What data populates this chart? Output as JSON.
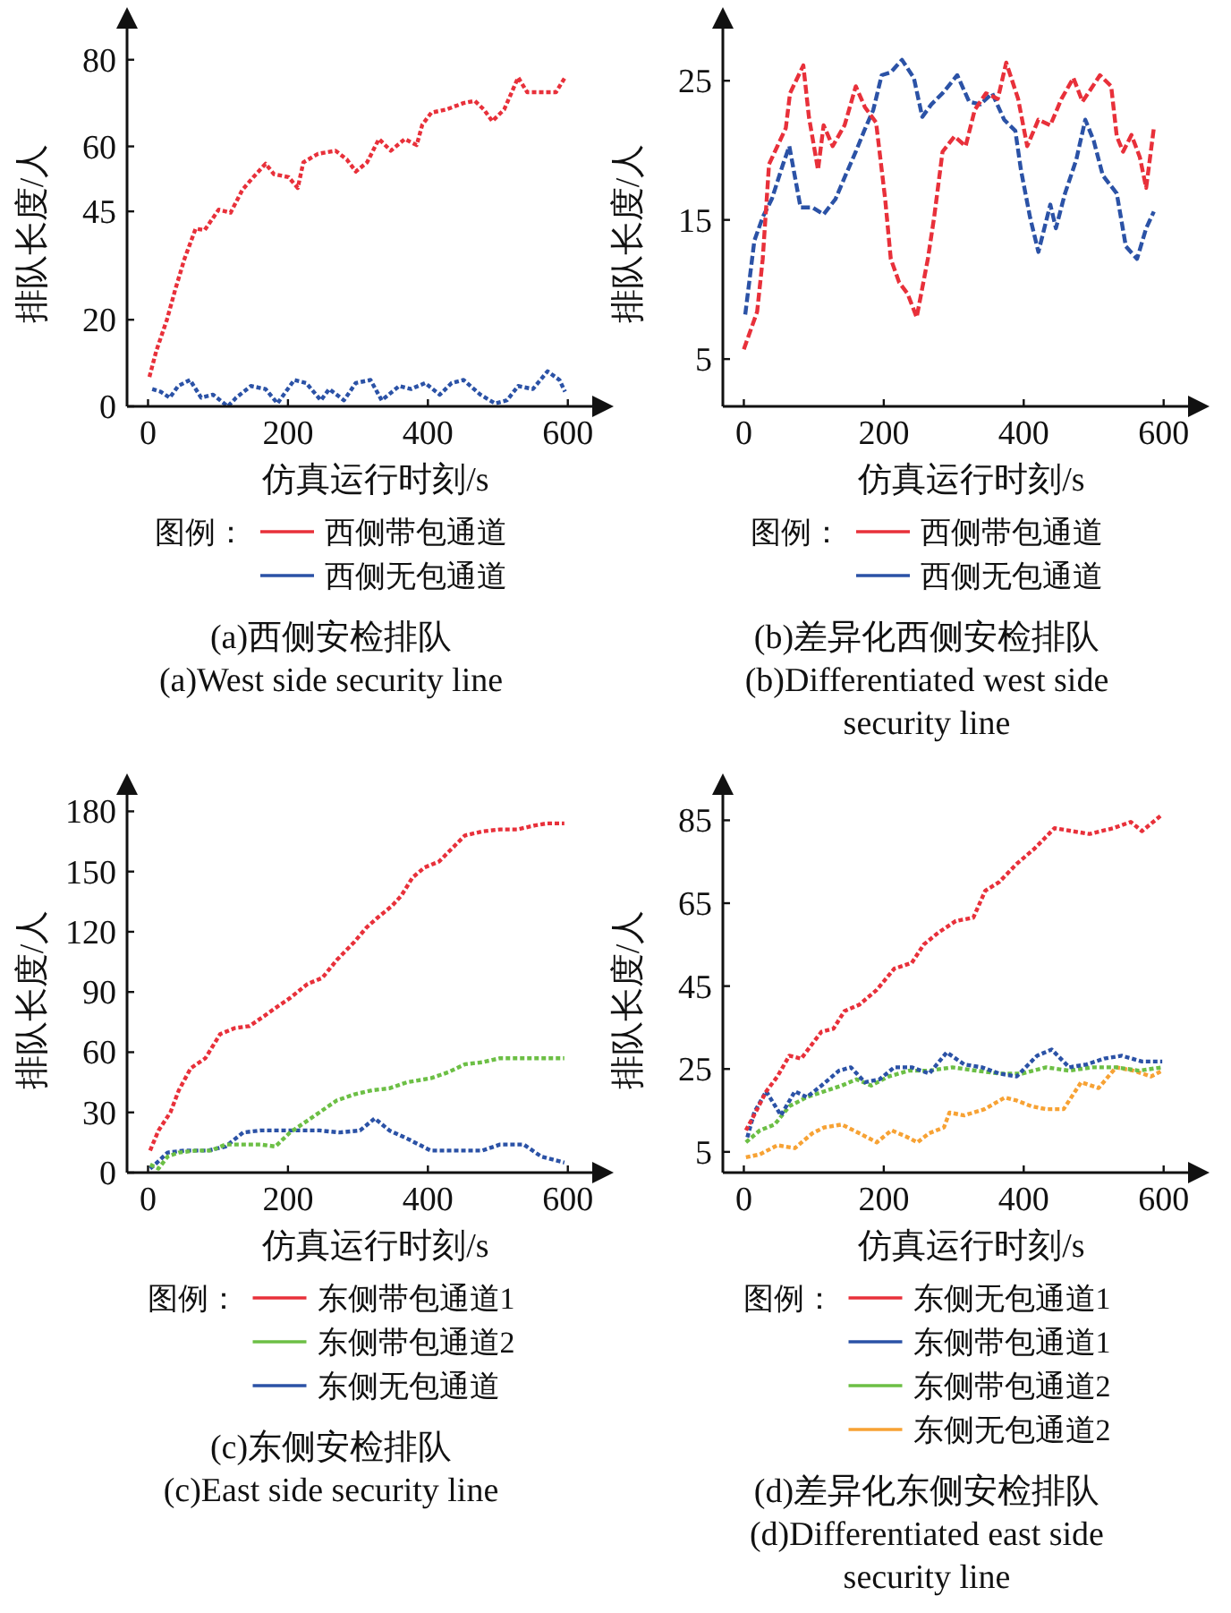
{
  "chart_data": [
    {
      "type": "line",
      "xlabel": "仿真运行时刻/s",
      "ylabel": "排队长度/人",
      "legend_title": "图例：",
      "legend": "bottom",
      "grid": false,
      "marker": "none",
      "line_style": "dotted",
      "xlim": [
        -30,
        640
      ],
      "xticks": [
        0,
        200,
        400,
        600
      ],
      "ylim": [
        0,
        88
      ],
      "yticks": [
        0,
        20,
        45,
        60,
        80
      ],
      "annotations": [
        "(a)西侧安检排队",
        "(a)West side security line"
      ],
      "series": [
        {
          "name": "西侧带包通道",
          "color": "#e8303a",
          "x": [
            2,
            12,
            27,
            39,
            52,
            68,
            81,
            101,
            118,
            135,
            151,
            168,
            180,
            201,
            214,
            222,
            243,
            268,
            284,
            297,
            313,
            330,
            347,
            367,
            384,
            392,
            405,
            426,
            451,
            467,
            480,
            492,
            509,
            529,
            542,
            567,
            583,
            596
          ],
          "values": [
            6.8,
            12.9,
            20,
            27,
            34,
            41,
            40.7,
            45.4,
            44.7,
            50,
            53,
            56,
            53.6,
            52.9,
            50.4,
            56.3,
            58.3,
            59,
            57,
            54.2,
            56.3,
            61.7,
            59,
            61.7,
            60.3,
            65,
            67.8,
            68.5,
            70,
            70.5,
            68.5,
            65.8,
            68.5,
            75.9,
            72.5,
            72.5,
            72.5,
            75.9
          ]
        },
        {
          "name": "西侧无包通道",
          "color": "#2b52a6",
          "x": [
            6,
            18,
            31,
            43,
            60,
            76,
            93,
            114,
            126,
            147,
            168,
            185,
            209,
            226,
            247,
            259,
            280,
            297,
            318,
            334,
            359,
            376,
            396,
            417,
            434,
            451,
            475,
            496,
            513,
            529,
            550,
            571,
            588,
            596
          ],
          "values": [
            4,
            3.4,
            2,
            4.7,
            6.1,
            2,
            2.7,
            0,
            2,
            4.7,
            4,
            0.7,
            6.1,
            5.4,
            1.4,
            4,
            1.4,
            5.4,
            6.1,
            1.4,
            4.7,
            4,
            5.4,
            2.7,
            5.4,
            6.1,
            2.7,
            0.7,
            1.4,
            4.7,
            4,
            8.1,
            6.1,
            3.4
          ]
        }
      ]
    },
    {
      "type": "line",
      "xlabel": "仿真运行时刻/s",
      "ylabel": "排队长度/人",
      "legend_title": "图例：",
      "legend": "bottom",
      "grid": false,
      "marker": "none",
      "line_style": "dashed",
      "xlim": [
        -30,
        640
      ],
      "xticks": [
        0,
        200,
        400,
        600
      ],
      "ylim": [
        1.6,
        29
      ],
      "yticks": [
        5,
        15,
        25
      ],
      "annotations": [
        "(b)差异化西侧安检排队",
        "(b)Differentiated west side security line"
      ],
      "series": [
        {
          "name": "西侧带包通道",
          "color": "#e8303a",
          "x": [
            0,
            19,
            27,
            36,
            48,
            60,
            66,
            85,
            93,
            106,
            114,
            127,
            144,
            160,
            173,
            189,
            202,
            210,
            222,
            234,
            247,
            255,
            263,
            272,
            284,
            301,
            317,
            330,
            346,
            363,
            375,
            392,
            405,
            421,
            438,
            454,
            471,
            484,
            496,
            509,
            525,
            533,
            542,
            554,
            566,
            575,
            586
          ],
          "values": [
            5.7,
            8.4,
            12.2,
            19,
            20.3,
            21.6,
            24.1,
            26.1,
            22.4,
            18.6,
            21.8,
            20.3,
            21.8,
            24.6,
            23.1,
            22,
            16.5,
            12.2,
            10.5,
            9.7,
            8,
            10.1,
            12.2,
            15.2,
            19.9,
            21,
            20.3,
            22.9,
            24.1,
            23.7,
            26.3,
            23.7,
            20.3,
            22.2,
            21.8,
            23.7,
            25.2,
            23.5,
            24.4,
            25.4,
            24.6,
            21,
            19.9,
            21.1,
            19.5,
            17.3,
            21.6
          ]
        },
        {
          "name": "西侧无包通道",
          "color": "#2b52a6",
          "x": [
            2,
            15,
            27,
            40,
            56,
            65,
            81,
            98,
            114,
            131,
            147,
            160,
            172,
            185,
            197,
            210,
            226,
            243,
            255,
            268,
            284,
            305,
            322,
            338,
            355,
            372,
            388,
            396,
            409,
            421,
            438,
            446,
            459,
            475,
            488,
            500,
            513,
            533,
            546,
            562,
            575,
            586
          ],
          "values": [
            8.2,
            13.5,
            15.2,
            16.5,
            19,
            20.3,
            15.9,
            15.9,
            15.4,
            16.5,
            18.4,
            19.9,
            21.4,
            22.9,
            25.4,
            25.6,
            26.5,
            25.2,
            22.4,
            23.3,
            24.1,
            25.4,
            23.5,
            23.3,
            24.1,
            22.2,
            21.4,
            18.6,
            15.2,
            12.7,
            16.1,
            14.4,
            16.9,
            19.3,
            22.2,
            20.7,
            18.2,
            16.9,
            13.1,
            12.2,
            14.4,
            15.6
          ]
        }
      ]
    },
    {
      "type": "line",
      "xlabel": "仿真运行时刻/s",
      "ylabel": "排队长度/人",
      "legend_title": "图例：",
      "legend": "bottom",
      "grid": false,
      "marker": "none",
      "line_style": "dotted",
      "xlim": [
        -30,
        640
      ],
      "xticks": [
        0,
        200,
        400,
        600
      ],
      "ylim": [
        0,
        190
      ],
      "yticks": [
        0,
        30,
        60,
        90,
        120,
        150,
        180
      ],
      "annotations": [
        "(c)东侧安检排队",
        "(c)East side security line"
      ],
      "series": [
        {
          "name": "东侧带包通道1",
          "color": "#e8303a",
          "x": [
            3,
            15,
            32,
            44,
            61,
            82,
            103,
            124,
            145,
            166,
            182,
            203,
            228,
            249,
            270,
            295,
            312,
            328,
            349,
            362,
            378,
            395,
            416,
            433,
            453,
            478,
            503,
            528,
            553,
            570,
            595
          ],
          "values": [
            11,
            21,
            30,
            41,
            52,
            57,
            69,
            72,
            73,
            78,
            82,
            87,
            94,
            97,
            106,
            115,
            122,
            127,
            133,
            138,
            147,
            152,
            155,
            161,
            168,
            170,
            171,
            171,
            173,
            174,
            174
          ]
        },
        {
          "name": "东侧带包通道2",
          "color": "#6cbf45",
          "x": [
            3,
            15,
            28,
            44,
            69,
            90,
            111,
            136,
            161,
            182,
            203,
            220,
            245,
            270,
            295,
            320,
            345,
            370,
            404,
            429,
            453,
            478,
            503,
            537,
            595
          ],
          "values": [
            4,
            2,
            8,
            10,
            11,
            11,
            14,
            14,
            14,
            13,
            20,
            24,
            30,
            36,
            39,
            41,
            42,
            45,
            47,
            50,
            54,
            55,
            57,
            57,
            57
          ]
        },
        {
          "name": "东侧无包通道",
          "color": "#2b52a6",
          "x": [
            3,
            13,
            28,
            53,
            86,
            111,
            136,
            161,
            186,
            211,
            245,
            274,
            303,
            324,
            345,
            370,
            404,
            437,
            478,
            503,
            537,
            562,
            595
          ],
          "values": [
            2,
            5,
            10,
            11,
            11,
            13,
            20,
            21,
            21,
            21,
            21,
            20,
            21,
            27,
            21,
            17,
            11,
            11,
            11,
            14,
            14,
            8,
            5
          ]
        }
      ]
    },
    {
      "type": "line",
      "xlabel": "仿真运行时刻/s",
      "ylabel": "排队长度/人",
      "legend_title": "图例：",
      "legend": "bottom",
      "grid": false,
      "marker": "none",
      "line_style": "dotted",
      "xlim": [
        -30,
        640
      ],
      "xticks": [
        0,
        200,
        400,
        600
      ],
      "ylim": [
        0,
        92
      ],
      "yticks": [
        5,
        25,
        45,
        65,
        85
      ],
      "annotations": [
        "(d)差异化东侧安检排队",
        "(d)Differentiated east side security line"
      ],
      "series": [
        {
          "name": "东侧无包通道1",
          "color": "#e8303a",
          "x": [
            3,
            17,
            32,
            48,
            65,
            82,
            98,
            111,
            128,
            144,
            165,
            190,
            215,
            240,
            257,
            278,
            303,
            328,
            345,
            365,
            390,
            415,
            444,
            469,
            494,
            528,
            553,
            569,
            598
          ],
          "values": [
            10.2,
            14.6,
            19.6,
            23.2,
            28.2,
            27.5,
            31.1,
            34,
            34.7,
            39,
            40.5,
            44.1,
            49.2,
            50.6,
            55,
            57.9,
            60.7,
            61.5,
            68,
            70.1,
            74.5,
            78.1,
            83.1,
            82.4,
            81.7,
            83.1,
            84.6,
            82.4,
            86.4
          ]
        },
        {
          "name": "东侧带包通道1",
          "color": "#2b52a6",
          "x": [
            5,
            15,
            32,
            53,
            73,
            90,
            111,
            136,
            153,
            173,
            194,
            215,
            240,
            265,
            290,
            315,
            340,
            365,
            390,
            419,
            440,
            465,
            490,
            515,
            540,
            569,
            598
          ],
          "values": [
            8.5,
            14.6,
            19.6,
            13.8,
            19.6,
            18.2,
            21,
            24.6,
            25.4,
            21.8,
            22.5,
            25.4,
            25.4,
            23.9,
            29,
            26.1,
            25.4,
            23.9,
            23.2,
            28.2,
            29.7,
            25.4,
            26.1,
            27.5,
            28.2,
            26.8,
            26.8
          ]
        },
        {
          "name": "东侧带包通道2",
          "color": "#6cbf45",
          "x": [
            3,
            23,
            44,
            65,
            90,
            115,
            140,
            161,
            182,
            207,
            236,
            265,
            298,
            332,
            365,
            398,
            432,
            465,
            498,
            532,
            565,
            598
          ],
          "values": [
            7.3,
            10.2,
            11.6,
            16,
            18.2,
            19.6,
            21,
            22.5,
            21,
            23.2,
            24.6,
            24.6,
            25.4,
            24.6,
            23.9,
            23.9,
            25.4,
            24.6,
            25.4,
            25.4,
            24.6,
            25.4
          ]
        },
        {
          "name": "东侧无包通道2",
          "color": "#f7a234",
          "x": [
            3,
            23,
            48,
            73,
            98,
            115,
            140,
            165,
            190,
            211,
            232,
            248,
            265,
            286,
            294,
            315,
            344,
            373,
            390,
            411,
            432,
            457,
            482,
            507,
            532,
            557,
            582,
            598
          ],
          "values": [
            3.7,
            4.4,
            6.6,
            5.9,
            9.5,
            10.9,
            11.6,
            9.5,
            7.3,
            10.2,
            8.7,
            7.3,
            9.5,
            10.9,
            14.5,
            13.8,
            15.3,
            18.1,
            17.4,
            16,
            15.3,
            15.3,
            21.8,
            20.4,
            25.4,
            24.6,
            23.2,
            24.6
          ]
        }
      ]
    }
  ]
}
